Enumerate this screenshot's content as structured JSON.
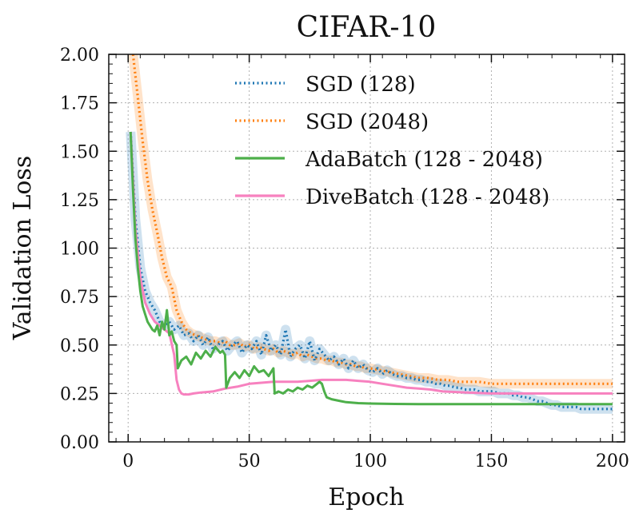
{
  "chart_data": {
    "type": "line",
    "title": "CIFAR-10",
    "xlabel": "Epoch",
    "ylabel": "Validation Loss",
    "xlim": [
      -8,
      205
    ],
    "ylim": [
      0,
      2.0
    ],
    "xticks": [
      0,
      50,
      100,
      150,
      200
    ],
    "yticks": [
      0.0,
      0.25,
      0.5,
      0.75,
      1.0,
      1.25,
      1.5,
      1.75,
      2.0
    ],
    "xtick_labels": [
      "0",
      "50",
      "100",
      "150",
      "200"
    ],
    "ytick_labels": [
      "0.00",
      "0.25",
      "0.50",
      "0.75",
      "1.00",
      "1.25",
      "1.50",
      "1.75",
      "2.00"
    ],
    "grid": true,
    "legend_position": "top-right",
    "series": [
      {
        "name": "SGD (128)",
        "color": "#1f77b4",
        "style": "dotted",
        "x": [
          1,
          3,
          5,
          7,
          9,
          11,
          13,
          15,
          17,
          19,
          21,
          23,
          25,
          27,
          29,
          31,
          33,
          35,
          37,
          39,
          41,
          43,
          45,
          47,
          49,
          51,
          53,
          55,
          57,
          59,
          61,
          63,
          65,
          67,
          69,
          71,
          73,
          75,
          77,
          79,
          81,
          83,
          85,
          87,
          89,
          91,
          93,
          95,
          97,
          99,
          101,
          103,
          105,
          107,
          109,
          111,
          113,
          115,
          117,
          119,
          121,
          123,
          125,
          127,
          129,
          131,
          133,
          135,
          137,
          139,
          141,
          143,
          145,
          147,
          149,
          151,
          153,
          155,
          157,
          159,
          161,
          163,
          165,
          167,
          169,
          171,
          173,
          175,
          177,
          179,
          181,
          183,
          185,
          187,
          189,
          191,
          193,
          195,
          197,
          200
        ],
        "y": [
          1.6,
          1.15,
          0.9,
          0.78,
          0.72,
          0.68,
          0.62,
          0.6,
          0.62,
          0.58,
          0.6,
          0.55,
          0.56,
          0.52,
          0.55,
          0.5,
          0.54,
          0.48,
          0.5,
          0.52,
          0.47,
          0.5,
          0.52,
          0.46,
          0.5,
          0.48,
          0.52,
          0.45,
          0.55,
          0.47,
          0.5,
          0.45,
          0.58,
          0.44,
          0.48,
          0.5,
          0.43,
          0.52,
          0.42,
          0.48,
          0.45,
          0.42,
          0.44,
          0.4,
          0.43,
          0.38,
          0.42,
          0.38,
          0.4,
          0.37,
          0.36,
          0.38,
          0.35,
          0.37,
          0.35,
          0.34,
          0.34,
          0.33,
          0.33,
          0.32,
          0.32,
          0.31,
          0.31,
          0.3,
          0.3,
          0.29,
          0.29,
          0.28,
          0.28,
          0.27,
          0.27,
          0.27,
          0.26,
          0.26,
          0.26,
          0.26,
          0.25,
          0.25,
          0.25,
          0.24,
          0.24,
          0.23,
          0.23,
          0.22,
          0.21,
          0.21,
          0.2,
          0.19,
          0.19,
          0.18,
          0.18,
          0.18,
          0.18,
          0.17,
          0.17,
          0.17,
          0.17,
          0.17,
          0.17,
          0.17
        ]
      },
      {
        "name": "SGD (2048)",
        "color": "#ff7f0e",
        "style": "dotted",
        "x": [
          2,
          4,
          6,
          8,
          10,
          12,
          14,
          16,
          18,
          20,
          22,
          24,
          26,
          28,
          30,
          32,
          34,
          36,
          38,
          40,
          42,
          44,
          46,
          48,
          50,
          52,
          54,
          56,
          58,
          60,
          62,
          64,
          66,
          68,
          70,
          72,
          74,
          76,
          78,
          80,
          82,
          84,
          86,
          88,
          90,
          92,
          94,
          96,
          98,
          100,
          104,
          108,
          112,
          116,
          120,
          124,
          128,
          132,
          136,
          140,
          145,
          150,
          160,
          170,
          180,
          190,
          200
        ],
        "y": [
          2.0,
          1.78,
          1.55,
          1.35,
          1.2,
          1.08,
          0.95,
          0.85,
          0.8,
          0.68,
          0.62,
          0.58,
          0.56,
          0.55,
          0.54,
          0.53,
          0.52,
          0.52,
          0.51,
          0.52,
          0.5,
          0.5,
          0.51,
          0.49,
          0.5,
          0.48,
          0.49,
          0.48,
          0.47,
          0.48,
          0.46,
          0.47,
          0.46,
          0.45,
          0.46,
          0.44,
          0.45,
          0.44,
          0.43,
          0.43,
          0.42,
          0.42,
          0.41,
          0.41,
          0.4,
          0.4,
          0.39,
          0.39,
          0.38,
          0.38,
          0.37,
          0.36,
          0.35,
          0.34,
          0.33,
          0.33,
          0.32,
          0.32,
          0.31,
          0.31,
          0.31,
          0.3,
          0.3,
          0.3,
          0.3,
          0.3,
          0.3
        ]
      },
      {
        "name": "AdaBatch (128 - 2048)",
        "color": "#4daf4a",
        "style": "solid",
        "x": [
          1,
          2,
          3,
          4,
          5,
          6,
          7,
          8,
          9,
          10,
          11,
          12,
          13,
          14,
          15,
          16,
          17,
          18,
          19,
          20,
          20.5,
          22,
          24,
          26,
          28,
          30,
          32,
          34,
          36,
          38,
          39,
          40,
          40.5,
          42,
          44,
          46,
          48,
          50,
          52,
          54,
          56,
          58,
          60,
          60.5,
          62,
          64,
          66,
          68,
          70,
          72,
          74,
          76,
          78,
          79,
          80,
          81,
          82,
          84,
          86,
          88,
          90,
          95,
          100,
          110,
          120,
          140,
          160,
          180,
          200
        ],
        "y": [
          1.6,
          1.3,
          1.05,
          0.9,
          0.78,
          0.7,
          0.66,
          0.62,
          0.6,
          0.58,
          0.57,
          0.6,
          0.55,
          0.62,
          0.58,
          0.68,
          0.55,
          0.57,
          0.52,
          0.5,
          0.38,
          0.42,
          0.44,
          0.4,
          0.46,
          0.43,
          0.47,
          0.44,
          0.49,
          0.46,
          0.47,
          0.45,
          0.28,
          0.33,
          0.36,
          0.33,
          0.37,
          0.34,
          0.39,
          0.36,
          0.37,
          0.34,
          0.38,
          0.25,
          0.26,
          0.25,
          0.27,
          0.26,
          0.28,
          0.27,
          0.29,
          0.28,
          0.3,
          0.31,
          0.3,
          0.26,
          0.23,
          0.22,
          0.215,
          0.21,
          0.205,
          0.2,
          0.198,
          0.196,
          0.195,
          0.195,
          0.195,
          0.195,
          0.195
        ]
      },
      {
        "name": "DiveBatch (128 - 2048)",
        "color": "#f781bf",
        "style": "solid",
        "x": [
          1,
          3,
          5,
          7,
          9,
          11,
          13,
          15,
          17,
          19,
          20,
          21,
          22,
          23,
          25,
          27,
          30,
          35,
          40,
          45,
          50,
          55,
          60,
          65,
          70,
          75,
          80,
          85,
          90,
          95,
          100,
          105,
          110,
          115,
          120,
          125,
          130,
          140,
          150,
          160,
          170,
          180,
          190,
          200
        ],
        "y": [
          1.6,
          1.1,
          0.85,
          0.72,
          0.66,
          0.62,
          0.6,
          0.58,
          0.56,
          0.45,
          0.32,
          0.27,
          0.25,
          0.245,
          0.245,
          0.25,
          0.255,
          0.26,
          0.275,
          0.285,
          0.3,
          0.305,
          0.31,
          0.31,
          0.31,
          0.315,
          0.32,
          0.32,
          0.32,
          0.315,
          0.31,
          0.3,
          0.29,
          0.28,
          0.275,
          0.27,
          0.26,
          0.255,
          0.25,
          0.25,
          0.25,
          0.25,
          0.25,
          0.25
        ]
      }
    ]
  }
}
